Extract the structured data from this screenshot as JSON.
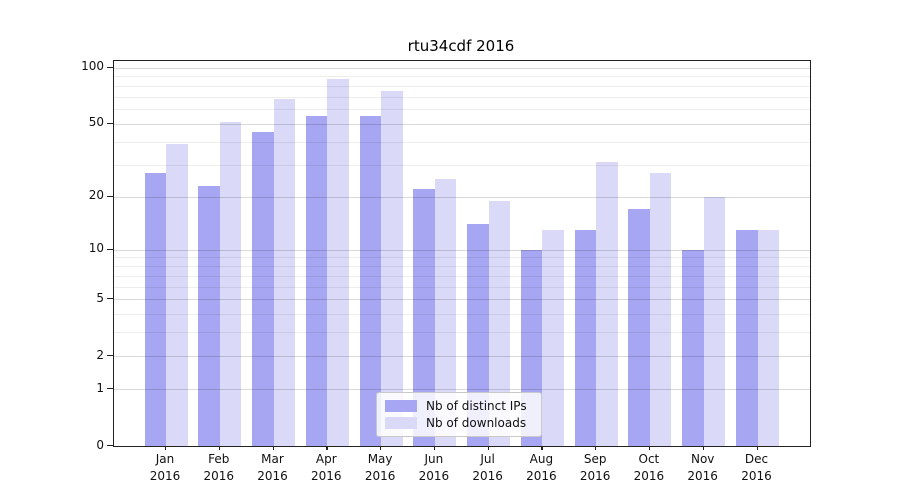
{
  "title": "rtu34cdf 2016",
  "colors": {
    "distinct_ips": "#a6a6f2",
    "downloads": "#dadaf8",
    "axis": "#222222"
  },
  "chart_data": {
    "type": "bar",
    "title": "rtu34cdf 2016",
    "categories": [
      "Jan 2016",
      "Feb 2016",
      "Mar 2016",
      "Apr 2016",
      "May 2016",
      "Jun 2016",
      "Jul 2016",
      "Aug 2016",
      "Sep 2016",
      "Oct 2016",
      "Nov 2016",
      "Dec 2016"
    ],
    "series": [
      {
        "name": "Nb of distinct IPs",
        "color": "#a6a6f2",
        "values": [
          27,
          23,
          45,
          55,
          55,
          22,
          14,
          10,
          13,
          17,
          10,
          13
        ]
      },
      {
        "name": "Nb of downloads",
        "color": "#dadaf8",
        "values": [
          39,
          51,
          68,
          87,
          75,
          25,
          19,
          13,
          31,
          27,
          20,
          13
        ]
      }
    ],
    "xlabel": "",
    "ylabel": "",
    "yscale": "log1p",
    "ylim": [
      0,
      108.7
    ],
    "y_tick_values": [
      0,
      1,
      2,
      5,
      10,
      20,
      50,
      100
    ],
    "y_minor_gridline_values": [
      3,
      4,
      6,
      7,
      8,
      9,
      30,
      40,
      60,
      70,
      80,
      90
    ],
    "grid": "horizontal",
    "legend_position": "lower center"
  }
}
